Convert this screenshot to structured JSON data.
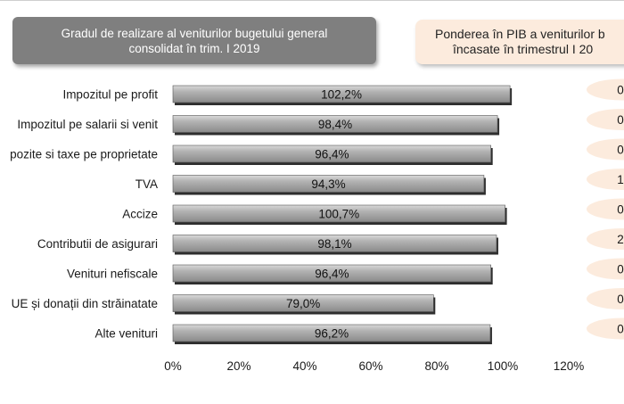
{
  "left_title": {
    "line1": "Gradul de realizare al veniturilor bugetului general",
    "line2": "consolidat în trim. I 2019"
  },
  "right_title": {
    "line1": "Ponderea în PIB a veniturilor b",
    "line2": "încasate în trimestrul I 20"
  },
  "chart_data": {
    "type": "bar",
    "orientation": "horizontal",
    "title": "Gradul de realizare al veniturilor bugetului general consolidat în trim. I 2019",
    "categories": [
      "Impozitul pe profit",
      "Impozitul pe salarii si venit",
      "pozite si taxe pe proprietate",
      "TVA",
      "Accize",
      "Contributii de asigurari",
      "Venituri nefiscale",
      "UE și donații din străinatate",
      "Alte venituri"
    ],
    "values": [
      102.2,
      98.4,
      96.4,
      94.3,
      100.7,
      98.1,
      96.4,
      79.0,
      96.2
    ],
    "value_labels": [
      "102,2%",
      "98,4%",
      "96,4%",
      "94,3%",
      "100,7%",
      "98,1%",
      "96,4%",
      "79,0%",
      "96,2%"
    ],
    "xlim": [
      0,
      120
    ],
    "x_ticks": [
      0,
      20,
      40,
      60,
      80,
      100,
      120
    ],
    "x_tick_labels": [
      "0%",
      "20%",
      "40%",
      "60%",
      "80%",
      "100%",
      "120%"
    ],
    "bar_color": "#8c8c8c",
    "grid": false,
    "legend": "none"
  },
  "side_values": [
    "0",
    "0",
    "0",
    "1",
    "0",
    "2",
    "0",
    "0",
    "0"
  ],
  "colors": {
    "left_title_bg": "#7f7f7f",
    "right_title_bg": "#fcebdd",
    "ellipse_bg": "#fcebdd"
  }
}
